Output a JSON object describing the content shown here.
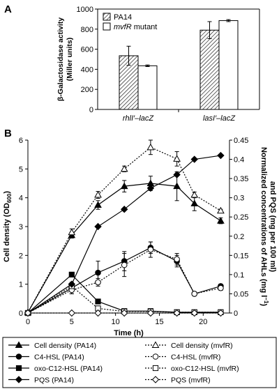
{
  "panels": {
    "A": {
      "label": "A"
    },
    "B": {
      "label": "B"
    }
  },
  "chart_data": [
    {
      "type": "bar",
      "panel": "A",
      "ylabel_line1": "β-Galactosidase activity",
      "ylabel_line2": "(Miller units)",
      "ylim": [
        0,
        1000
      ],
      "yticks": [
        0,
        200,
        400,
        600,
        800,
        1000
      ],
      "categories": [
        "rhlI′–lacZ",
        "lasI′–lacZ"
      ],
      "series": [
        {
          "name": "PA14",
          "values": [
            535,
            790
          ],
          "errors": [
            95,
            85
          ],
          "fill": "hatched"
        },
        {
          "name": "mvfR mutant",
          "values": [
            435,
            885
          ],
          "errors": [
            8,
            10
          ],
          "fill": "white"
        }
      ],
      "legend": {
        "items": [
          "PA14",
          "mvfR mutant"
        ],
        "placement": "top-left"
      },
      "colors": {
        "bar_stroke": "#000000",
        "hatch": "#000000"
      }
    },
    {
      "type": "line",
      "panel": "B",
      "xlabel": "Time (h)",
      "ylabel_left": "Cell density (OD",
      "ylabel_left_sub": "600",
      "ylabel_right_line1": "Normalized concentrations of AHLs (mg l",
      "ylabel_right_line1_sup": "−1",
      "ylabel_right_line2": "and PQS (mg per 100 ml)",
      "xlim": [
        0,
        23
      ],
      "xticks": [
        0,
        5,
        10,
        15,
        20
      ],
      "ylim_left": [
        0,
        6
      ],
      "yticks_left": [
        0,
        1,
        2,
        3,
        4,
        5,
        6
      ],
      "ylim_right": [
        0,
        0.45
      ],
      "yticks_right": [
        "0",
        "0.05",
        "0.1",
        "0.15",
        "0.2",
        "0.25",
        "0.3",
        "0.35",
        "0.4",
        "0.45"
      ],
      "series": [
        {
          "name": "Cell density (PA14)",
          "axis": "left",
          "marker": "triangle",
          "filled": true,
          "dash": false,
          "x": [
            0,
            5,
            8,
            11,
            14,
            17,
            19,
            22
          ],
          "y": [
            0.02,
            2.7,
            3.75,
            4.4,
            4.5,
            4.4,
            3.8,
            3.2
          ],
          "err": [
            0,
            0.1,
            0.15,
            0.2,
            0.25,
            0.5,
            0.25,
            0.1
          ]
        },
        {
          "name": "Cell density (mvfR)",
          "axis": "left",
          "marker": "triangle",
          "filled": false,
          "dash": true,
          "x": [
            0,
            5,
            8,
            11,
            14,
            17,
            19,
            22
          ],
          "y": [
            0.02,
            2.8,
            4.1,
            5.0,
            5.75,
            5.35,
            4.1,
            3.55
          ],
          "err": [
            0,
            0.12,
            0.12,
            0.1,
            0.25,
            0.25,
            0.1,
            0.05
          ]
        },
        {
          "name": "C4-HSL (PA14)",
          "axis": "right",
          "marker": "circle",
          "filled": true,
          "dash": false,
          "x": [
            0,
            5,
            8,
            11,
            14,
            17,
            19,
            22
          ],
          "y": [
            0.0,
            0.065,
            0.105,
            0.135,
            0.17,
            0.135,
            0.05,
            0.07
          ],
          "err": [
            0,
            0.015,
            0.03,
            0.025,
            0.015,
            0.015,
            0.005,
            0.005
          ]
        },
        {
          "name": "C4-HSL (mvfR)",
          "axis": "right",
          "marker": "circle",
          "filled": false,
          "dash": true,
          "x": [
            0,
            5,
            8,
            11,
            14,
            17,
            19,
            22
          ],
          "y": [
            0.0,
            0.06,
            0.08,
            0.125,
            0.165,
            0.14,
            0.05,
            0.065
          ],
          "err": [
            0,
            0.01,
            0.01,
            0.03,
            0.02,
            0.015,
            0.004,
            0.006
          ]
        },
        {
          "name": "oxo-C12-HSL (PA14)",
          "axis": "right",
          "marker": "square",
          "filled": true,
          "dash": false,
          "x": [
            0,
            5,
            8,
            11,
            14,
            17,
            19,
            22
          ],
          "y": [
            0.0,
            0.1,
            0.03,
            0.005,
            0.005,
            0.002,
            0.002,
            0.002
          ],
          "err": [
            0,
            0.005,
            0.003,
            0.001,
            0.001,
            0.001,
            0.001,
            0.001
          ]
        },
        {
          "name": "oxo-C12-HSL (mvfR)",
          "axis": "right",
          "marker": "square",
          "filled": false,
          "dash": true,
          "x": [
            0,
            5,
            8,
            11,
            14,
            17,
            19,
            22
          ],
          "y": [
            0.0,
            0.07,
            0.012,
            0.004,
            0.004,
            0.002,
            0.002,
            0.002
          ],
          "err": [
            0,
            0.004,
            0.002,
            0.001,
            0.001,
            0.001,
            0.001,
            0.001
          ]
        },
        {
          "name": "PQS (PA14)",
          "axis": "right",
          "marker": "diamond",
          "filled": true,
          "dash": false,
          "x": [
            0,
            5,
            8,
            11,
            14,
            17,
            19,
            22
          ],
          "y": [
            0.0,
            0.075,
            0.225,
            0.27,
            0.325,
            0.36,
            0.4,
            0.41
          ],
          "err": []
        },
        {
          "name": "PQS (mvfR)",
          "axis": "right",
          "marker": "diamond",
          "filled": false,
          "dash": true,
          "x": [
            0,
            5,
            8,
            11,
            14,
            17,
            19,
            22
          ],
          "y": [
            0.0,
            0.0,
            0.0,
            0.0,
            0.0,
            0.0,
            0.0,
            0.0
          ],
          "err": []
        }
      ],
      "legend": {
        "placement": "bottom",
        "rows": [
          [
            "Cell density (PA14)",
            "Cell density (mvfR)"
          ],
          [
            "C4-HSL (PA14)",
            "C4-HSL (mvfR)"
          ],
          [
            "oxo-C12-HSL (PA14)",
            "oxo-C12-HSL (mvfR)"
          ],
          [
            "PQS (PA14)",
            "PQS (mvfR)"
          ]
        ]
      },
      "colors": {
        "line": "#000000"
      }
    }
  ]
}
